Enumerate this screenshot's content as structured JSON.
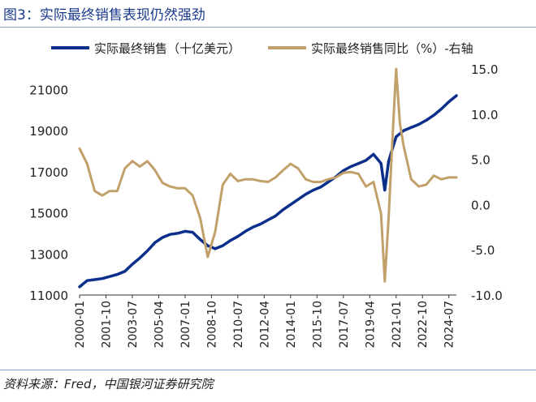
{
  "figure_title": "图3：实际最终销售表现仍然强劲",
  "source_note": "资料来源：Fred，中国银河证券研究院",
  "colors": {
    "title": "#1a3a8a",
    "sales_series": "#0b2f8a",
    "yoy_series": "#c1a06a",
    "axis": "#333333"
  },
  "chart_data": {
    "type": "line",
    "series": [
      {
        "name": "实际最终销售（十亿美元）",
        "axis": "left",
        "x": [
          "2000-01",
          "2000-07",
          "2001-01",
          "2001-07",
          "2002-01",
          "2002-07",
          "2003-01",
          "2003-07",
          "2004-01",
          "2004-07",
          "2005-01",
          "2005-07",
          "2006-01",
          "2006-07",
          "2007-01",
          "2007-07",
          "2008-01",
          "2008-07",
          "2009-01",
          "2009-07",
          "2010-01",
          "2010-07",
          "2011-01",
          "2011-07",
          "2012-01",
          "2012-07",
          "2013-01",
          "2013-07",
          "2014-01",
          "2014-07",
          "2015-01",
          "2015-07",
          "2016-01",
          "2016-07",
          "2017-01",
          "2017-07",
          "2018-01",
          "2018-07",
          "2019-01",
          "2019-07",
          "2020-01",
          "2020-04",
          "2020-07",
          "2020-10",
          "2021-01",
          "2021-07",
          "2022-01",
          "2022-07",
          "2023-01",
          "2023-07",
          "2024-01",
          "2024-07",
          "2025-01"
        ],
        "values": [
          11400,
          11700,
          11750,
          11800,
          11900,
          12000,
          12150,
          12500,
          12800,
          13150,
          13550,
          13800,
          13950,
          14000,
          14100,
          14050,
          13700,
          13400,
          13250,
          13400,
          13650,
          13850,
          14100,
          14300,
          14450,
          14650,
          14850,
          15150,
          15400,
          15650,
          15900,
          16100,
          16250,
          16500,
          16750,
          17050,
          17250,
          17400,
          17550,
          17850,
          17400,
          16100,
          17500,
          18100,
          18700,
          19000,
          19150,
          19300,
          19500,
          19750,
          20050,
          20400,
          20700
        ]
      },
      {
        "name": "实际最终销售同比（%）-右轴",
        "axis": "right",
        "x": [
          "2000-01",
          "2000-07",
          "2001-01",
          "2001-07",
          "2002-01",
          "2002-07",
          "2003-01",
          "2003-07",
          "2004-01",
          "2004-07",
          "2005-01",
          "2005-07",
          "2006-01",
          "2006-07",
          "2007-01",
          "2007-07",
          "2008-01",
          "2008-07",
          "2009-01",
          "2009-07",
          "2010-01",
          "2010-07",
          "2011-01",
          "2011-07",
          "2012-01",
          "2012-07",
          "2013-01",
          "2013-07",
          "2014-01",
          "2014-07",
          "2015-01",
          "2015-07",
          "2016-01",
          "2016-07",
          "2017-01",
          "2017-07",
          "2018-01",
          "2018-07",
          "2019-01",
          "2019-07",
          "2020-01",
          "2020-04",
          "2020-07",
          "2020-10",
          "2021-01",
          "2021-04",
          "2021-07",
          "2022-01",
          "2022-07",
          "2023-01",
          "2023-07",
          "2024-01",
          "2024-07",
          "2025-01"
        ],
        "values": [
          6.2,
          4.5,
          1.5,
          1.0,
          1.5,
          1.5,
          4.0,
          4.8,
          4.2,
          4.8,
          3.8,
          2.4,
          2.0,
          1.8,
          1.8,
          1.0,
          -1.5,
          -5.8,
          -3.0,
          2.2,
          3.4,
          2.6,
          2.8,
          2.8,
          2.6,
          2.5,
          3.0,
          3.8,
          4.5,
          4.0,
          2.8,
          2.5,
          2.5,
          2.8,
          3.0,
          3.5,
          3.6,
          3.4,
          2.0,
          2.5,
          -1.0,
          -8.5,
          -1.5,
          7.0,
          15.0,
          9.0,
          6.5,
          2.8,
          2.0,
          2.2,
          3.2,
          2.8,
          3.0,
          3.0
        ]
      }
    ],
    "x_tick_labels": [
      "2000-01",
      "2001-10",
      "2003-07",
      "2005-04",
      "2007-01",
      "2008-10",
      "2010-07",
      "2012-04",
      "2014-01",
      "2015-10",
      "2017-07",
      "2019-04",
      "2021-01",
      "2022-10",
      "2024-07"
    ],
    "y_left": {
      "ticks": [
        11000,
        13000,
        15000,
        17000,
        19000,
        21000
      ],
      "tick_labels": [
        "11000",
        "13000",
        "15000",
        "17000",
        "19000",
        "21000"
      ],
      "range": [
        11000,
        22000
      ]
    },
    "y_right": {
      "ticks": [
        -10,
        -5,
        0,
        5,
        10,
        15
      ],
      "tick_labels": [
        "-10.0",
        "-5.0",
        "0.0",
        "5.0",
        "10.0",
        "15.0"
      ],
      "range": [
        -10,
        15
      ]
    },
    "grid": false,
    "legend_position": "top"
  }
}
